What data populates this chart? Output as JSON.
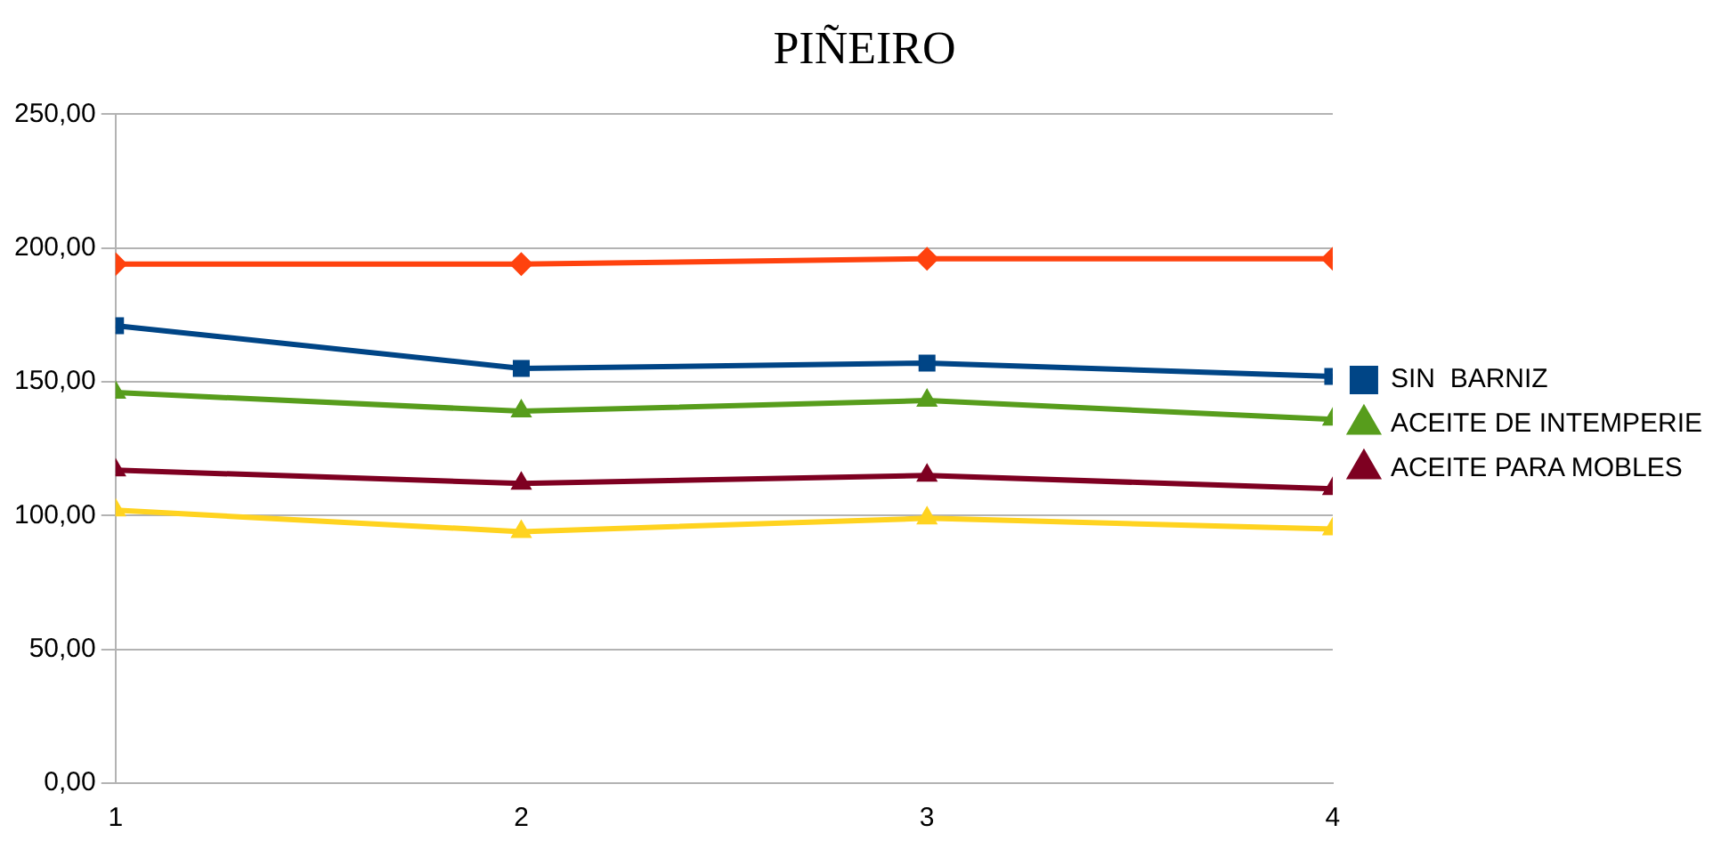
{
  "chart_data": {
    "type": "line",
    "title": "PIÑEIRO",
    "x": [
      1,
      2,
      3,
      4
    ],
    "xlim": [
      1,
      4
    ],
    "xticks": [
      1,
      2,
      3,
      4
    ],
    "ylim": [
      0,
      250
    ],
    "yticks": [
      {
        "value": 0,
        "label": "0,00"
      },
      {
        "value": 50,
        "label": "50,00"
      },
      {
        "value": 100,
        "label": "100,00"
      },
      {
        "value": 150,
        "label": "150,00"
      },
      {
        "value": 200,
        "label": "200,00"
      },
      {
        "value": 250,
        "label": "250,00"
      }
    ],
    "grid": "y",
    "legend": "right",
    "line_style": "solid",
    "series": [
      {
        "name": "SIN  BARNIZ",
        "color": "#004586",
        "marker": "square",
        "values": [
          171,
          155,
          157,
          152
        ]
      },
      {
        "color": "#ff420e",
        "marker": "diamond",
        "values": [
          194,
          194,
          196,
          196
        ]
      },
      {
        "color": "#ffd320",
        "marker": "triangle",
        "values": [
          102,
          94,
          99,
          95
        ]
      },
      {
        "name": "ACEITE DE INTEMPERIE",
        "color": "#579d1c",
        "marker": "triangle",
        "values": [
          146,
          139,
          143,
          136
        ]
      },
      {
        "name": "ACEITE PARA MOBLES",
        "color": "#7e0021",
        "marker": "triangle",
        "values": [
          117,
          112,
          115,
          110
        ]
      }
    ]
  }
}
